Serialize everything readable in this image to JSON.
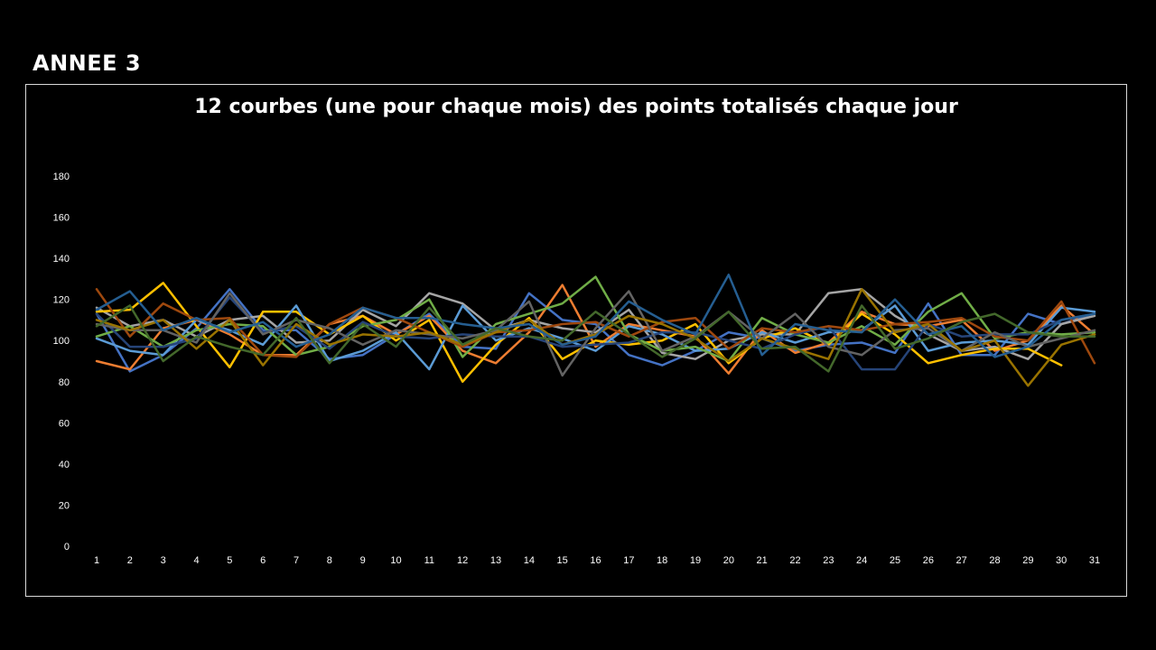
{
  "page": {
    "heading": "ANNEE 3"
  },
  "chart_data": {
    "type": "line",
    "title": "12 courbes (une pour chaque mois) des points totalisés chaque jour",
    "xlabel": "",
    "ylabel": "",
    "ylim": [
      0,
      180
    ],
    "yticks": [
      0,
      20,
      40,
      60,
      80,
      100,
      120,
      140,
      160,
      180
    ],
    "x": [
      1,
      2,
      3,
      4,
      5,
      6,
      7,
      8,
      9,
      10,
      11,
      12,
      13,
      14,
      15,
      16,
      17,
      18,
      19,
      20,
      21,
      22,
      23,
      24,
      25,
      26,
      27,
      28,
      29,
      30,
      31
    ],
    "grid": false,
    "legend": "none",
    "series": [
      {
        "color": "#4472c4",
        "values": [
          113,
          85,
          93,
          106,
          125,
          105,
          105,
          91,
          93,
          103,
          113,
          97,
          96,
          123,
          110,
          108,
          93,
          88,
          95,
          104,
          101,
          95,
          98,
          99,
          94,
          118,
          93,
          93,
          113,
          108,
          113
        ]
      },
      {
        "color": "#ed7d31",
        "values": [
          90,
          86,
          106,
          110,
          103,
          93,
          93,
          108,
          112,
          103,
          112,
          95,
          89,
          104,
          127,
          97,
          108,
          105,
          102,
          84,
          105,
          94,
          99,
          114,
          108,
          107,
          110,
          95,
          100,
          117,
          103
        ]
      },
      {
        "color": "#a5a5a5",
        "values": [
          116,
          107,
          110,
          102,
          110,
          112,
          99,
          100,
          115,
          107,
          123,
          118,
          105,
          110,
          106,
          104,
          115,
          94,
          91,
          100,
          103,
          103,
          123,
          125,
          112,
          103,
          95,
          97,
          91,
          108,
          112
        ]
      },
      {
        "color": "#ffc000",
        "values": [
          114,
          115,
          128,
          107,
          87,
          114,
          114,
          103,
          112,
          100,
          110,
          80,
          98,
          111,
          91,
          100,
          98,
          100,
          108,
          89,
          101,
          106,
          98,
          113,
          103,
          89,
          93,
          96,
          96,
          88,
          null
        ]
      },
      {
        "color": "#5b9bd5",
        "values": [
          101,
          95,
          93,
          110,
          105,
          98,
          117,
          90,
          95,
          104,
          86,
          117,
          100,
          106,
          101,
          95,
          107,
          103,
          95,
          96,
          104,
          99,
          104,
          105,
          117,
          95,
          99,
          100,
          98,
          116,
          114
        ]
      },
      {
        "color": "#70ad47",
        "values": [
          102,
          107,
          97,
          105,
          108,
          107,
          93,
          97,
          107,
          110,
          120,
          92,
          108,
          113,
          118,
          131,
          103,
          95,
          97,
          90,
          111,
          103,
          99,
          107,
          98,
          114,
          123,
          101,
          104,
          103,
          104
        ]
      },
      {
        "color": "#264478",
        "values": [
          113,
          97,
          97,
          101,
          121,
          104,
          107,
          96,
          109,
          102,
          101,
          103,
          102,
          102,
          97,
          98,
          99,
          104,
          104,
          100,
          96,
          103,
          107,
          86,
          86,
          108,
          102,
          103,
          103,
          110,
          113
        ]
      },
      {
        "color": "#9e480e",
        "values": [
          125,
          102,
          118,
          110,
          111,
          93,
          92,
          108,
          116,
          111,
          104,
          97,
          104,
          105,
          108,
          109,
          102,
          109,
          111,
          96,
          106,
          104,
          107,
          105,
          108,
          109,
          111,
          102,
          100,
          119,
          89
        ]
      },
      {
        "color": "#636363",
        "values": [
          108,
          105,
          105,
          99,
          123,
          103,
          110,
          106,
          98,
          105,
          103,
          101,
          105,
          119,
          83,
          106,
          124,
          95,
          102,
          114,
          101,
          113,
          97,
          93,
          105,
          106,
          95,
          104,
          97,
          101,
          105
        ]
      },
      {
        "color": "#997300",
        "values": [
          110,
          105,
          110,
          96,
          110,
          88,
          108,
          98,
          103,
          102,
          104,
          98,
          104,
          110,
          98,
          103,
          112,
          108,
          101,
          90,
          101,
          96,
          91,
          125,
          104,
          108,
          95,
          100,
          78,
          98,
          103
        ]
      },
      {
        "color": "#255e91",
        "values": [
          115,
          124,
          105,
          111,
          104,
          109,
          97,
          103,
          116,
          111,
          111,
          108,
          106,
          108,
          98,
          102,
          119,
          110,
          103,
          132,
          93,
          108,
          105,
          104,
          120,
          103,
          107,
          92,
          97,
          110,
          113
        ]
      },
      {
        "color": "#43682b",
        "values": [
          107,
          117,
          90,
          102,
          97,
          93,
          111,
          89,
          108,
          97,
          116,
          98,
          106,
          102,
          100,
          114,
          103,
          92,
          101,
          114,
          96,
          97,
          85,
          117,
          96,
          101,
          109,
          113,
          104,
          102,
          102
        ]
      }
    ]
  }
}
